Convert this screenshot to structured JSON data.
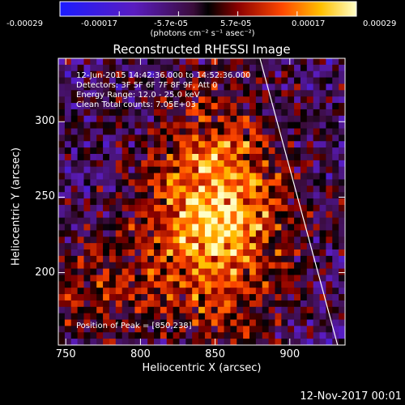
{
  "colorbar": {
    "ticks": [
      "-0.00029",
      "-0.00017",
      "-5.7e-05",
      "5.7e-05",
      "0.00017",
      "0.00029"
    ],
    "units": "(photons cm⁻² s⁻¹ asec⁻²)",
    "range": [
      -0.00029,
      0.00029
    ]
  },
  "chart_data": {
    "type": "heatmap",
    "title": "Reconstructed RHESSI Image",
    "xlabel": "Heliocentric X (arcsec)",
    "ylabel": "Heliocentric Y (arcsec)",
    "xlim": [
      745,
      937
    ],
    "ylim": [
      152,
      342
    ],
    "xticks": [
      750,
      800,
      850,
      900
    ],
    "yticks": [
      200,
      250,
      300
    ],
    "annotations": [
      "12-Jun-2015 14:42:36.000 to 14:52:36.000",
      "Detectors: 3F 5F 6F 7F 8F 9F, Att 0",
      "Energy Range: 12.0 - 25.0 keV",
      "Clean     Total counts: 7.05E+03"
    ],
    "peak_label": "Position of Peak = [850,238]",
    "peak": [
      850,
      238
    ],
    "limb_line": [
      [
        880,
        342
      ],
      [
        932,
        152
      ]
    ]
  },
  "footer": {
    "date": "12-Nov-2017 00:01"
  }
}
